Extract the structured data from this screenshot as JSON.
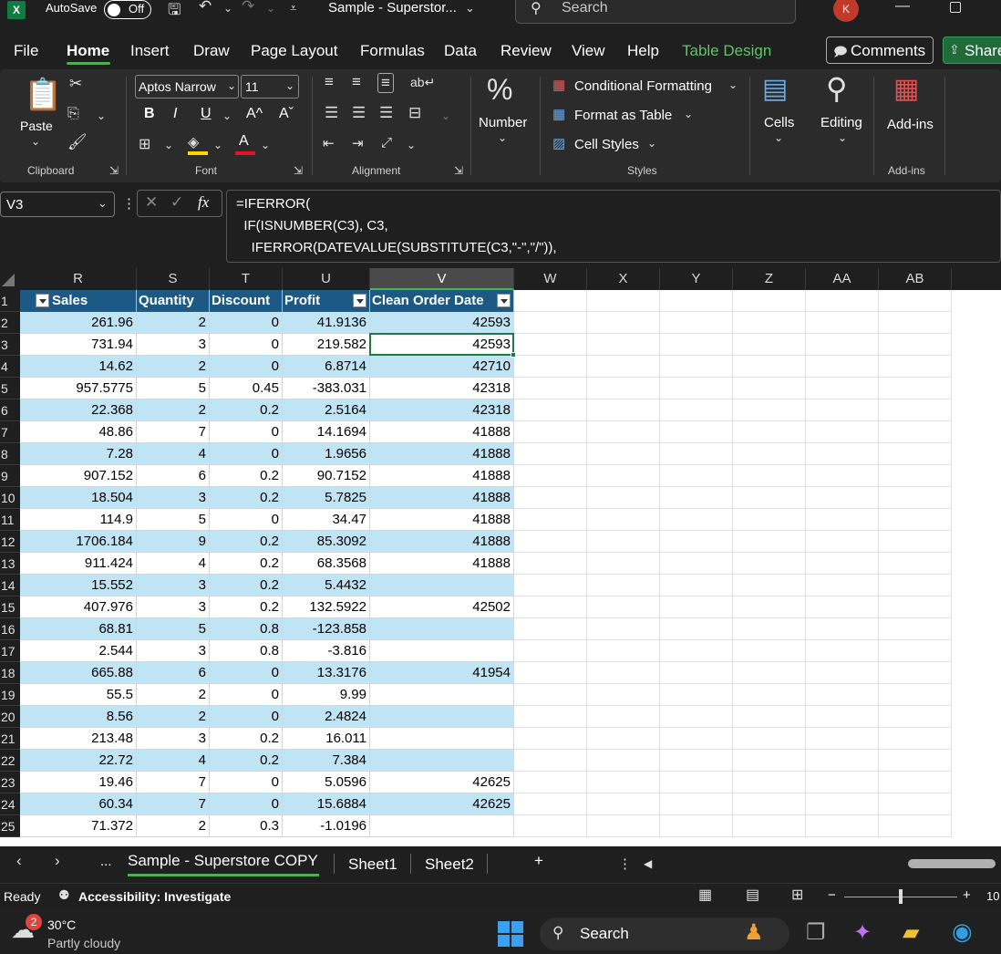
{
  "titlebar": {
    "autosave_label": "AutoSave",
    "autosave_state": "Off",
    "doc_title": "Sample - Superstor...",
    "search_placeholder": "Search",
    "avatar_initial": "K"
  },
  "menu": {
    "tabs": [
      "File",
      "Home",
      "Insert",
      "Draw",
      "Page Layout",
      "Formulas",
      "Data",
      "Review",
      "View",
      "Help",
      "Table Design"
    ],
    "active": "Home",
    "comments_label": "Comments",
    "share_label": "Share"
  },
  "ribbon": {
    "clipboard": {
      "paste_label": "Paste",
      "group_label": "Clipboard"
    },
    "font": {
      "font_name": "Aptos Narrow",
      "font_size": "11",
      "bold": "B",
      "italic": "I",
      "underline": "U",
      "grow": "A^",
      "shrink": "Aˇ",
      "font_color": "A",
      "group_label": "Font"
    },
    "alignment": {
      "group_label": "Alignment"
    },
    "number": {
      "label": "Number"
    },
    "styles": {
      "conditional": "Conditional Formatting",
      "format_table": "Format as Table",
      "cell_styles": "Cell Styles",
      "group_label": "Styles"
    },
    "cells": {
      "label": "Cells"
    },
    "editing": {
      "label": "Editing"
    },
    "addins": {
      "label": "Add-ins",
      "group_label": "Add-ins"
    }
  },
  "formula_bar": {
    "name_box": "V3",
    "fx": "fx",
    "lines": [
      "=IFERROR(",
      "  IF(ISNUMBER(C3), C3,",
      "    IFERROR(DATEVALUE(SUBSTITUTE(C3,\"-\",\"/\")),"
    ]
  },
  "grid": {
    "columns": [
      "R",
      "S",
      "T",
      "U",
      "V",
      "W",
      "X",
      "Y",
      "Z",
      "AA",
      "AB"
    ],
    "selected_column": "V",
    "selected_cell": "V3",
    "table_headers": [
      "Sales",
      "Quantity",
      "Discount",
      "Profit",
      "Clean Order Date"
    ],
    "rows": [
      {
        "n": "1"
      },
      {
        "n": "2",
        "c": [
          "261.96",
          "2",
          "0",
          "41.9136",
          "42593"
        ]
      },
      {
        "n": "3",
        "c": [
          "731.94",
          "3",
          "0",
          "219.582",
          "42593"
        ]
      },
      {
        "n": "4",
        "c": [
          "14.62",
          "2",
          "0",
          "6.8714",
          "42710"
        ]
      },
      {
        "n": "5",
        "c": [
          "957.5775",
          "5",
          "0.45",
          "-383.031",
          "42318"
        ]
      },
      {
        "n": "6",
        "c": [
          "22.368",
          "2",
          "0.2",
          "2.5164",
          "42318"
        ]
      },
      {
        "n": "7",
        "c": [
          "48.86",
          "7",
          "0",
          "14.1694",
          "41888"
        ]
      },
      {
        "n": "8",
        "c": [
          "7.28",
          "4",
          "0",
          "1.9656",
          "41888"
        ]
      },
      {
        "n": "9",
        "c": [
          "907.152",
          "6",
          "0.2",
          "90.7152",
          "41888"
        ]
      },
      {
        "n": "10",
        "c": [
          "18.504",
          "3",
          "0.2",
          "5.7825",
          "41888"
        ]
      },
      {
        "n": "11",
        "c": [
          "114.9",
          "5",
          "0",
          "34.47",
          "41888"
        ]
      },
      {
        "n": "12",
        "c": [
          "1706.184",
          "9",
          "0.2",
          "85.3092",
          "41888"
        ]
      },
      {
        "n": "13",
        "c": [
          "911.424",
          "4",
          "0.2",
          "68.3568",
          "41888"
        ]
      },
      {
        "n": "14",
        "c": [
          "15.552",
          "3",
          "0.2",
          "5.4432",
          ""
        ]
      },
      {
        "n": "15",
        "c": [
          "407.976",
          "3",
          "0.2",
          "132.5922",
          "42502"
        ]
      },
      {
        "n": "16",
        "c": [
          "68.81",
          "5",
          "0.8",
          "-123.858",
          ""
        ]
      },
      {
        "n": "17",
        "c": [
          "2.544",
          "3",
          "0.8",
          "-3.816",
          ""
        ]
      },
      {
        "n": "18",
        "c": [
          "665.88",
          "6",
          "0",
          "13.3176",
          "41954"
        ]
      },
      {
        "n": "19",
        "c": [
          "55.5",
          "2",
          "0",
          "9.99",
          ""
        ]
      },
      {
        "n": "20",
        "c": [
          "8.56",
          "2",
          "0",
          "2.4824",
          ""
        ]
      },
      {
        "n": "21",
        "c": [
          "213.48",
          "3",
          "0.2",
          "16.011",
          ""
        ]
      },
      {
        "n": "22",
        "c": [
          "22.72",
          "4",
          "0.2",
          "7.384",
          ""
        ]
      },
      {
        "n": "23",
        "c": [
          "19.46",
          "7",
          "0",
          "5.0596",
          "42625"
        ]
      },
      {
        "n": "24",
        "c": [
          "60.34",
          "7",
          "0",
          "15.6884",
          "42625"
        ]
      },
      {
        "n": "25",
        "c": [
          "71.372",
          "2",
          "0.3",
          "-1.0196",
          ""
        ]
      }
    ]
  },
  "sheets": {
    "tabs": [
      "Sample - Superstore COPY",
      "Sheet1",
      "Sheet2"
    ],
    "active": "Sample - Superstore COPY",
    "more": "...",
    "add": "+"
  },
  "status": {
    "ready": "Ready",
    "accessibility": "Accessibility: Investigate",
    "zoom": "10"
  },
  "taskbar": {
    "weather_badge": "2",
    "temperature": "30°C",
    "condition": "Partly cloudy",
    "search_label": "Search"
  },
  "colors": {
    "accent": "#1c5a85",
    "band": "#c0e4f4",
    "selection": "#1f7a3f"
  }
}
